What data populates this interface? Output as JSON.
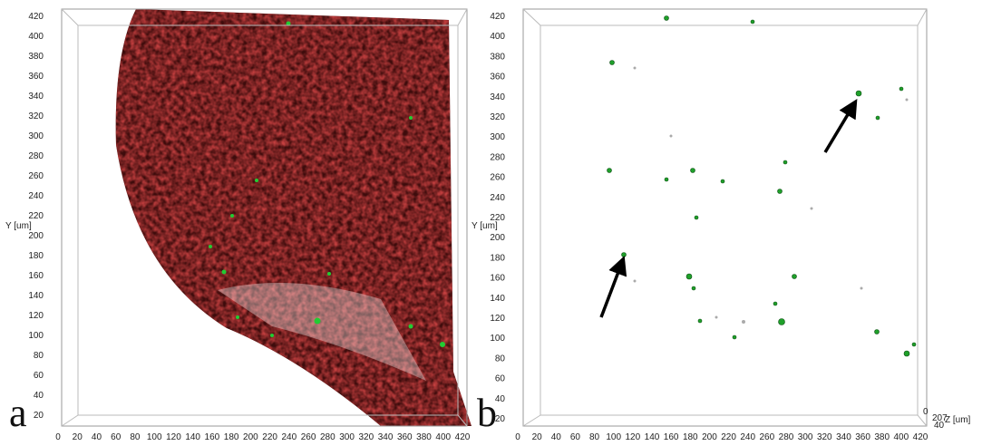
{
  "panels": [
    {
      "label": "a",
      "y_axis_label": "Y [um]",
      "x_ticks": [
        0,
        20,
        40,
        60,
        80,
        100,
        120,
        140,
        160,
        180,
        200,
        220,
        240,
        260,
        280,
        300,
        320,
        340,
        360,
        380,
        400,
        420
      ],
      "y_ticks": [
        20,
        40,
        60,
        80,
        100,
        120,
        140,
        160,
        180,
        200,
        220,
        240,
        260,
        280,
        300,
        320,
        340,
        360,
        380,
        400,
        420
      ]
    },
    {
      "label": "b",
      "y_axis_label": "Y [um]",
      "x_ticks": [
        0,
        20,
        40,
        60,
        80,
        100,
        120,
        140,
        160,
        180,
        200,
        220,
        240,
        260,
        280,
        300,
        320,
        340,
        360,
        380,
        400,
        420
      ],
      "y_ticks": [
        20,
        40,
        60,
        80,
        100,
        120,
        140,
        160,
        180,
        200,
        220,
        240,
        260,
        280,
        300,
        320,
        340,
        360,
        380,
        400,
        420
      ],
      "z_labels": [
        "0",
        "207",
        "40",
        "Z [um]"
      ]
    }
  ]
}
